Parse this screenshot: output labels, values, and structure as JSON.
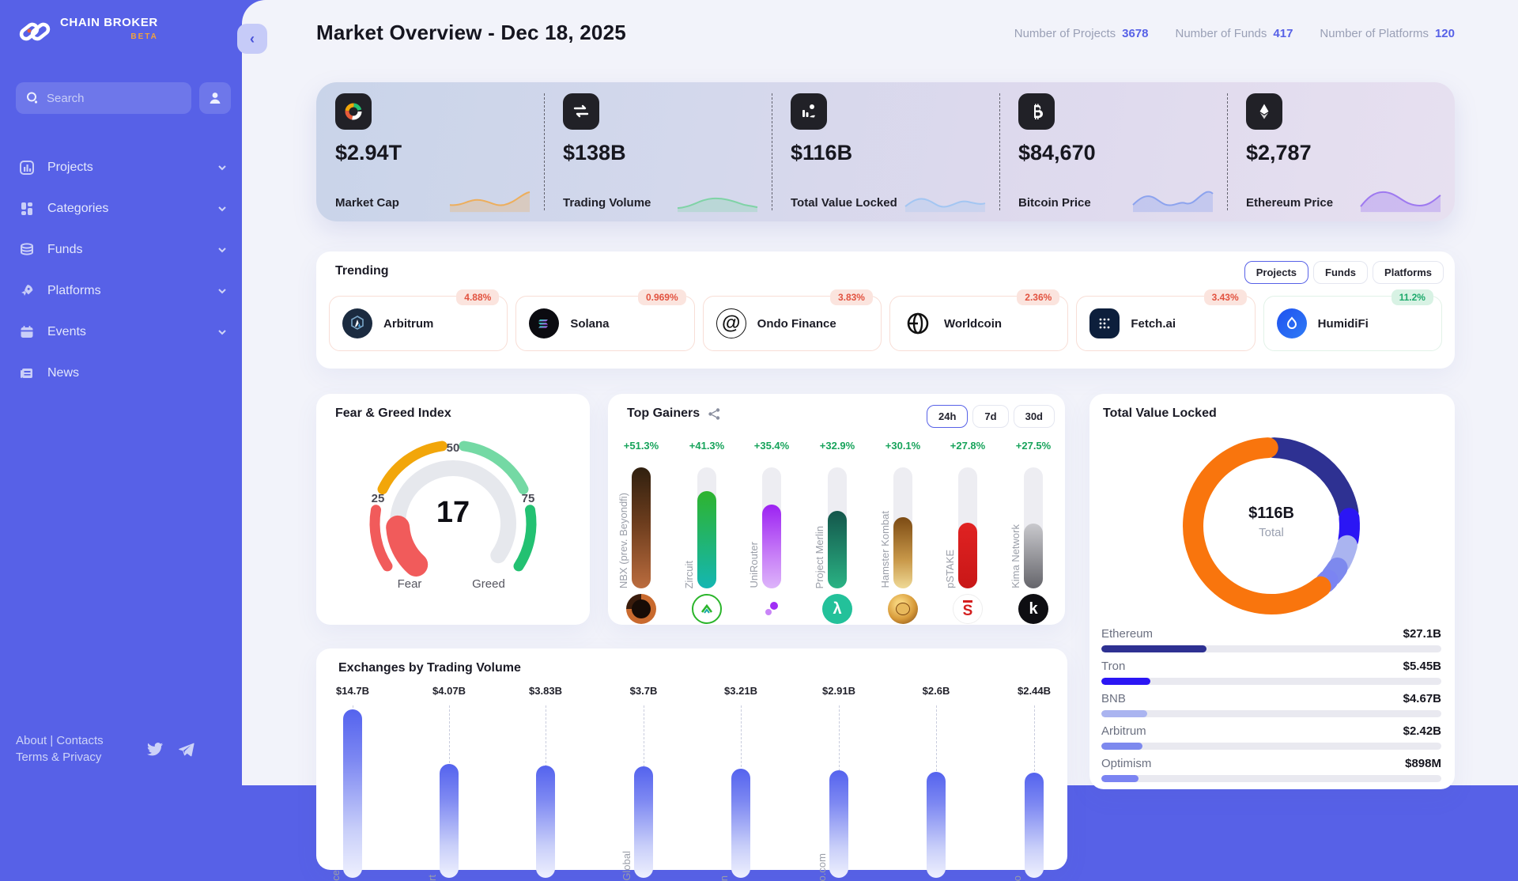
{
  "sidebar": {
    "logo": {
      "title": "CHAIN BROKER",
      "badge": "BETA"
    },
    "search": {
      "placeholder": "Search"
    },
    "nav": [
      {
        "label": "Projects",
        "icon": "bar-chart-icon"
      },
      {
        "label": "Categories",
        "icon": "grid-icon"
      },
      {
        "label": "Funds",
        "icon": "coins-icon"
      },
      {
        "label": "Platforms",
        "icon": "rocket-icon"
      },
      {
        "label": "Events",
        "icon": "calendar-icon"
      },
      {
        "label": "News",
        "icon": "news-icon"
      }
    ],
    "footer": {
      "line1": "About | Contacts",
      "line2": "Terms & Privacy"
    }
  },
  "header": {
    "title": "Market Overview - Dec 18, 2025",
    "stats": [
      {
        "label": "Number of Projects",
        "value": "3678"
      },
      {
        "label": "Number of Funds",
        "value": "417"
      },
      {
        "label": "Number of Platforms",
        "value": "120"
      }
    ]
  },
  "kpis": [
    {
      "label": "Market Cap",
      "value": "$2.94T",
      "icon": "donut-chart-icon",
      "spark_color": "#EDAE5C"
    },
    {
      "label": "Trading Volume",
      "value": "$138B",
      "icon": "swap-arrows-icon",
      "spark_color": "#7FD3A6"
    },
    {
      "label": "Total Value Locked",
      "value": "$116B",
      "icon": "coins-hand-icon",
      "spark_color": "#A3C6F2"
    },
    {
      "label": "Bitcoin Price",
      "value": "$84,670",
      "icon": "bitcoin-icon",
      "spark_color": "#8CA3EE"
    },
    {
      "label": "Ethereum Price",
      "value": "$2,787",
      "icon": "ethereum-icon",
      "spark_color": "#9E79F0"
    }
  ],
  "trending": {
    "title": "Trending",
    "tabs": [
      "Projects",
      "Funds",
      "Platforms"
    ],
    "active_tab": "Projects",
    "items": [
      {
        "name": "Arbitrum",
        "change": "4.88%",
        "tone": "red"
      },
      {
        "name": "Solana",
        "change": "0.969%",
        "tone": "red"
      },
      {
        "name": "Ondo Finance",
        "change": "3.83%",
        "tone": "red"
      },
      {
        "name": "Worldcoin",
        "change": "2.36%",
        "tone": "red"
      },
      {
        "name": "Fetch.ai",
        "change": "3.43%",
        "tone": "red"
      },
      {
        "name": "HumidiFi",
        "change": "11.2%",
        "tone": "green"
      }
    ]
  },
  "fear_greed": {
    "title": "Fear & Greed Index",
    "value": "17",
    "ticks": [
      "25",
      "50",
      "75"
    ],
    "min_label": "Fear",
    "max_label": "Greed",
    "colors": {
      "fear": "#F15B5B",
      "caution": "#F2A60A",
      "positive": "#74D9A4",
      "greed": "#23C172",
      "track": "#E6E8ED"
    }
  },
  "top_gainers": {
    "title": "Top Gainers",
    "tabs": [
      "24h",
      "7d",
      "30d"
    ],
    "active_tab": "24h",
    "max_value": 51.3,
    "items": [
      {
        "name": "NBX (prev. Beyondfi)",
        "pct": "+51.3%",
        "value": 51.3
      },
      {
        "name": "Zircuit",
        "pct": "+41.3%",
        "value": 41.3
      },
      {
        "name": "UniRouter",
        "pct": "+35.4%",
        "value": 35.4
      },
      {
        "name": "Project Merlin",
        "pct": "+32.9%",
        "value": 32.9
      },
      {
        "name": "Hamster Kombat",
        "pct": "+30.1%",
        "value": 30.1
      },
      {
        "name": "pSTAKE",
        "pct": "+27.8%",
        "value": 27.8
      },
      {
        "name": "Kima Network",
        "pct": "+27.5%",
        "value": 27.5
      }
    ]
  },
  "tvl": {
    "title": "Total Value Locked",
    "center_value": "$116B",
    "center_label": "Total",
    "total_b": 116,
    "other_color": "#F9750D",
    "rows": [
      {
        "name": "Ethereum",
        "value": "$27.1B",
        "value_b": 27.1,
        "bar_pct": 31,
        "color": "#2E3192"
      },
      {
        "name": "Tron",
        "value": "$5.45B",
        "value_b": 5.45,
        "bar_pct": 14.4,
        "color": "#2B16F4"
      },
      {
        "name": "BNB",
        "value": "$4.67B",
        "value_b": 4.67,
        "bar_pct": 13.6,
        "color": "#AAB4F0"
      },
      {
        "name": "Arbitrum",
        "value": "$2.42B",
        "value_b": 2.42,
        "bar_pct": 12,
        "color": "#7D89EE"
      },
      {
        "name": "Optimism",
        "value": "$898M",
        "value_b": 0.898,
        "bar_pct": 10.9,
        "color": "#7B84F2"
      }
    ]
  },
  "exchanges": {
    "title": "Exchanges by Trading Volume",
    "bars": [
      {
        "value": "$14.7B",
        "value_b": 14.7,
        "fragment": "ce"
      },
      {
        "value": "$4.07B",
        "value_b": 4.07,
        "fragment": "rt"
      },
      {
        "value": "$3.83B",
        "value_b": 3.83,
        "fragment": ""
      },
      {
        "value": "$3.7B",
        "value_b": 3.7,
        "fragment": "Global"
      },
      {
        "value": "$3.21B",
        "value_b": 3.21,
        "fragment": "n"
      },
      {
        "value": "$2.91B",
        "value_b": 2.91,
        "fragment": "o.com"
      },
      {
        "value": "$2.6B",
        "value_b": 2.6,
        "fragment": ""
      },
      {
        "value": "$2.44B",
        "value_b": 2.44,
        "fragment": "o"
      }
    ]
  }
}
